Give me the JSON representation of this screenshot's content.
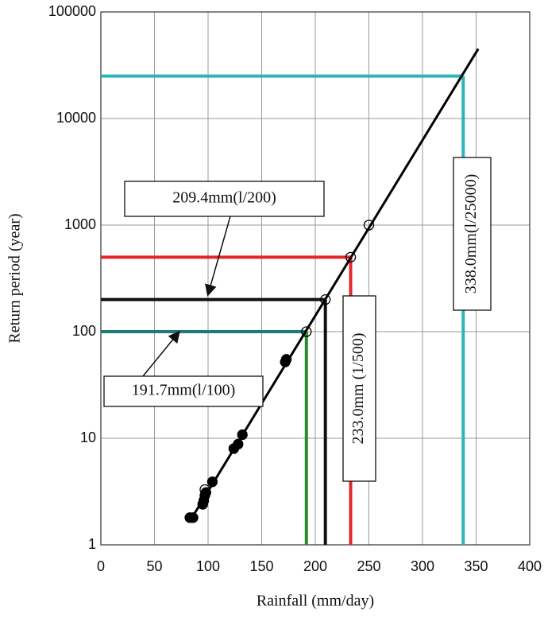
{
  "chart_data": {
    "type": "scatter",
    "xlabel": "Rainfall (mm/day)",
    "ylabel": "Return period (year)",
    "xlim": [
      0,
      400
    ],
    "ylim": [
      1,
      100000
    ],
    "xticks": [
      0,
      50,
      100,
      150,
      200,
      250,
      300,
      350,
      400
    ],
    "yticks": [
      1,
      10,
      100,
      1000,
      10000,
      100000
    ],
    "log_y": true,
    "grid": true,
    "series": [
      {
        "mode": "filled",
        "color": "#000000",
        "x": [
          83,
          86,
          95,
          96,
          97,
          98,
          104,
          124,
          128,
          132,
          172,
          173
        ],
        "values": [
          1.8,
          1.8,
          2.4,
          2.6,
          2.9,
          3.1,
          3.9,
          8,
          8.8,
          10.8,
          52,
          55
        ]
      },
      {
        "mode": "open",
        "color": "#000000",
        "x": [
          97,
          191.7,
          209.4,
          233,
          250
        ],
        "values": [
          3.3,
          100,
          200,
          500,
          1000
        ]
      },
      {
        "mode": "line",
        "color": "#000000",
        "x": [
          85,
          352
        ],
        "values": [
          1.8,
          45000
        ]
      }
    ],
    "reference_lines": [
      {
        "x": 338,
        "y": 25000,
        "h_color": "#2bb5b8",
        "v_color": "#2bb5b8"
      },
      {
        "x": 233,
        "y": 500,
        "h_color": "#e0282a",
        "v_color": "#e0282a"
      },
      {
        "x": 209.4,
        "y": 200,
        "h_color": "#111111",
        "v_color": "#111111"
      },
      {
        "x": 191.7,
        "y": 100,
        "h_color": "#1f7a78",
        "v_color": "#2a8a2e"
      }
    ],
    "annotations": [
      "209.4mm(l/200)",
      "191.7mm(l/100)",
      "233.0mm (1/500)",
      "338.0mm(l/25000)"
    ]
  }
}
